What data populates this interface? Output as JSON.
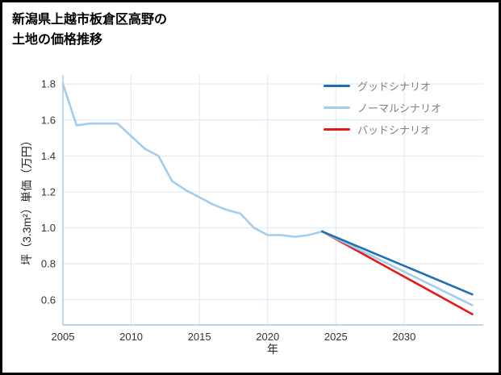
{
  "chart_data": {
    "type": "line",
    "title": "新潟県上越市板倉区高野の土地の価格推移",
    "title_lines": [
      "新潟県上越市板倉区高野の",
      "土地の価格推移"
    ],
    "xlabel": "年",
    "ylabel": "坪（3.3m²）単価（万円）",
    "x_ticks": [
      "2005",
      "2010",
      "2015",
      "2020",
      "2025",
      "2030"
    ],
    "y_ticks": [
      "0.6",
      "0.8",
      "1.0",
      "1.2",
      "1.4",
      "1.6",
      "1.8"
    ],
    "xlim": [
      2005,
      2035.8
    ],
    "ylim": [
      0.46,
      1.85
    ],
    "grid": true,
    "legend_position": "top-right",
    "colors": {
      "grid": "#dce9f5",
      "axis": "#b0c8da",
      "tick_text": "#333333",
      "legend_text": "#808080",
      "good": "#1f6fb5",
      "normal": "#a2cdee",
      "bad": "#e61919"
    },
    "series": [
      {
        "key": "historical",
        "color": "#a2cdee",
        "x": [
          2005,
          2006,
          2007,
          2008,
          2009,
          2010,
          2011,
          2012,
          2013,
          2014,
          2015,
          2016,
          2017,
          2018,
          2019,
          2020,
          2021,
          2022,
          2023,
          2024
        ],
        "values": [
          1.8,
          1.57,
          1.58,
          1.58,
          1.58,
          1.51,
          1.44,
          1.4,
          1.26,
          1.21,
          1.17,
          1.13,
          1.1,
          1.08,
          1.0,
          0.96,
          0.96,
          0.95,
          0.96,
          0.98
        ]
      },
      {
        "key": "bad",
        "color": "#e61919",
        "x": [
          2024,
          2035
        ],
        "values": [
          0.98,
          0.52
        ]
      },
      {
        "key": "normal",
        "color": "#a2cdee",
        "x": [
          2024,
          2035
        ],
        "values": [
          0.98,
          0.57
        ]
      },
      {
        "key": "good",
        "color": "#1f6fb5",
        "x": [
          2024,
          2035
        ],
        "values": [
          0.98,
          0.63
        ]
      }
    ],
    "legend": [
      {
        "key": "good",
        "label": "グッドシナリオ",
        "color": "#1f6fb5"
      },
      {
        "key": "normal",
        "label": "ノーマルシナリオ",
        "color": "#a2cdee"
      },
      {
        "key": "bad",
        "label": "バッドシナリオ",
        "color": "#e61919"
      }
    ]
  }
}
